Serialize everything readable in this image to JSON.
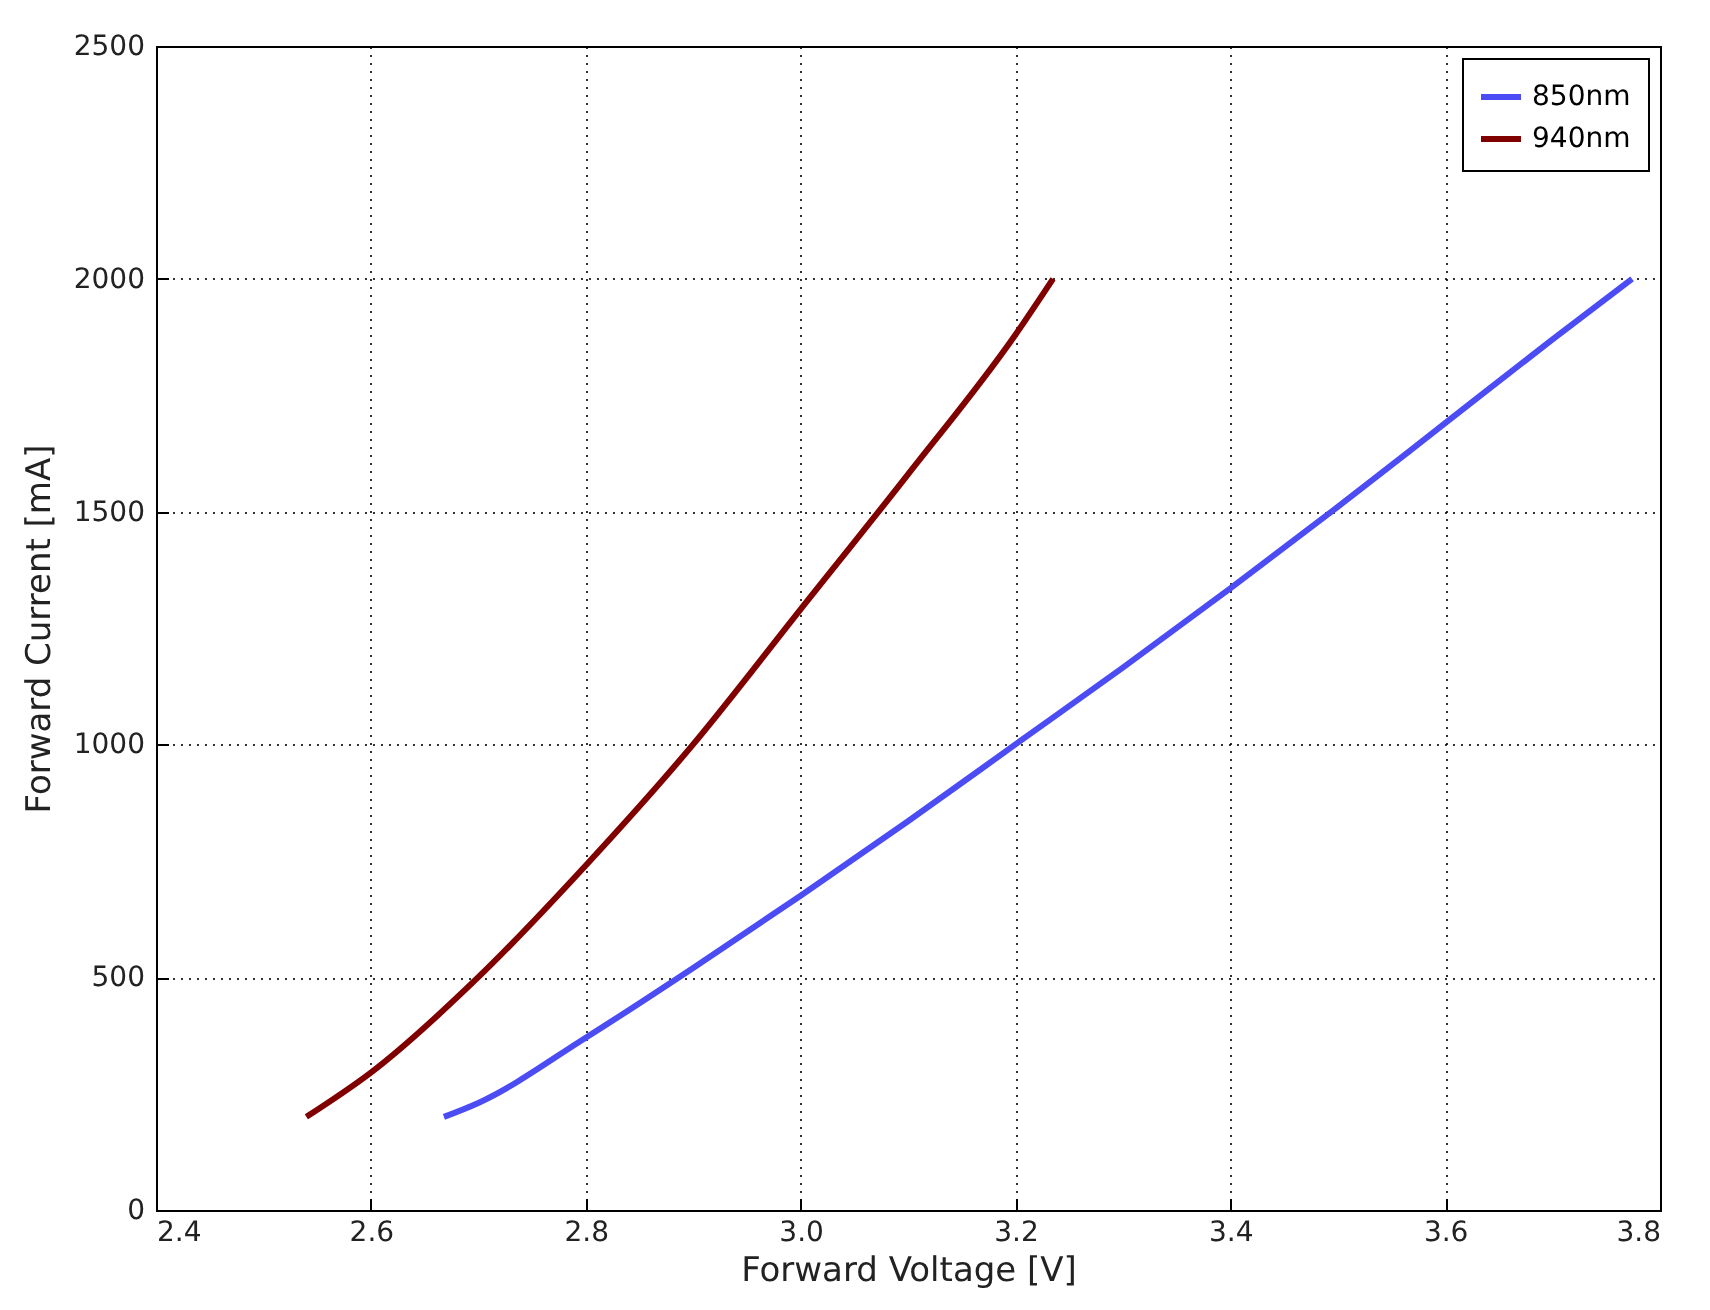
{
  "chart_data": {
    "type": "line",
    "xlabel": "Forward Voltage [V]",
    "ylabel": "Forward Current [mA]",
    "xlim": [
      2.4,
      3.8
    ],
    "xticks": [
      2.4,
      2.6,
      2.8,
      {
        "value": 3,
        "label": "3.0"
      },
      3.2,
      3.4,
      3.6,
      3.8
    ],
    "ylim": [
      0,
      2500
    ],
    "yticks": [
      0,
      500,
      1000,
      1500,
      2000,
      2500
    ],
    "grid": true,
    "legend": "top right",
    "line_style": "solid",
    "marker": "none",
    "series": [
      {
        "name": "850nm",
        "color": "#4c4cf5",
        "x": [
          2.668,
          2.7,
          2.8,
          2.9,
          3.0,
          3.1,
          3.2,
          3.3,
          3.4,
          3.5,
          3.6,
          3.7,
          3.774
        ],
        "values": [
          200,
          230,
          370,
          520,
          675,
          835,
          1000,
          1165,
          1335,
          1510,
          1690,
          1870,
          2000
        ]
      },
      {
        "name": "940nm",
        "color": "#800000",
        "x": [
          2.54,
          2.6,
          2.7,
          2.8,
          2.9,
          3.0,
          3.1,
          3.2,
          3.235
        ],
        "values": [
          200,
          295,
          500,
          740,
          1000,
          1290,
          1580,
          1880,
          2000
        ]
      }
    ]
  }
}
